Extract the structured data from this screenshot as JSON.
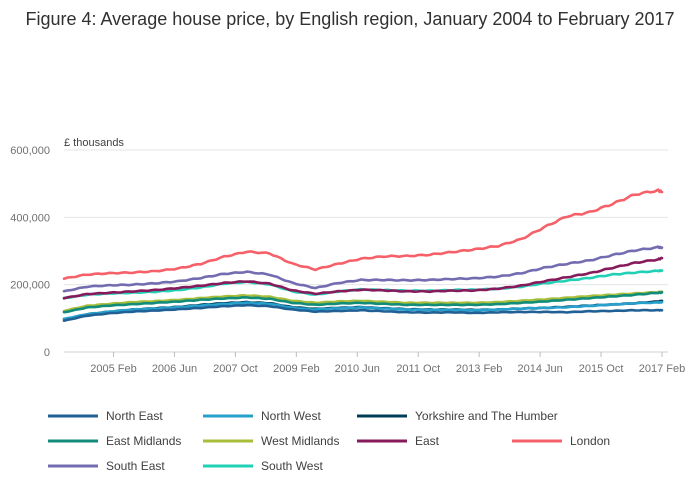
{
  "chart_data": {
    "type": "line",
    "title": "Figure 4: Average house price, by English region, January 2004 to February 2017",
    "ylabel": "£ thousands",
    "xlabel": "",
    "ylim": [
      0,
      600000
    ],
    "y_ticks": [
      0,
      200000,
      400000,
      600000
    ],
    "y_tick_labels": [
      "0",
      "200,000",
      "400,000",
      "600,000"
    ],
    "x_ticks": [
      "2005-02",
      "2006-06",
      "2007-10",
      "2009-02",
      "2010-06",
      "2011-10",
      "2013-02",
      "2014-06",
      "2015-10",
      "2017-02"
    ],
    "x_tick_labels": [
      "2005 Feb",
      "2006 Jun",
      "2007 Oct",
      "2009 Feb",
      "2010 Jun",
      "2011 Oct",
      "2013 Feb",
      "2014 Jun",
      "2015 Oct",
      "2017 Feb"
    ],
    "x_range": [
      "2004-01",
      "2017-02"
    ],
    "grid": true,
    "legend_position": "bottom",
    "dates": [
      "2004-01",
      "2004-07",
      "2005-01",
      "2005-07",
      "2006-01",
      "2006-07",
      "2007-01",
      "2007-07",
      "2008-01",
      "2008-07",
      "2009-01",
      "2009-07",
      "2010-01",
      "2010-07",
      "2011-01",
      "2011-07",
      "2012-01",
      "2012-07",
      "2013-01",
      "2013-07",
      "2014-01",
      "2014-07",
      "2015-01",
      "2015-07",
      "2016-01",
      "2016-07",
      "2017-01",
      "2017-02"
    ],
    "series": [
      {
        "name": "North East",
        "color": "#206095",
        "values": [
          93000,
          108000,
          115000,
          120000,
          123000,
          127000,
          131000,
          136000,
          139000,
          136000,
          126000,
          120000,
          122000,
          124000,
          121000,
          118000,
          117000,
          118000,
          116000,
          118000,
          119000,
          119000,
          118000,
          121000,
          122000,
          124000,
          124000,
          124000
        ]
      },
      {
        "name": "North West",
        "color": "#27a0cc",
        "values": [
          98000,
          112000,
          120000,
          126000,
          129000,
          133000,
          138000,
          143000,
          146000,
          143000,
          131000,
          126000,
          130000,
          132000,
          129000,
          126000,
          125000,
          125000,
          124000,
          126000,
          129000,
          131000,
          133000,
          137000,
          141000,
          145000,
          147000,
          148000
        ]
      },
      {
        "name": "Yorkshire and The Humber",
        "color": "#003c57",
        "values": [
          97000,
          112000,
          120000,
          126000,
          130000,
          134000,
          140000,
          145000,
          148000,
          145000,
          133000,
          128000,
          131000,
          133000,
          130000,
          127000,
          126000,
          126000,
          125000,
          126000,
          129000,
          131000,
          134000,
          138000,
          141000,
          145000,
          150000,
          152000
        ]
      },
      {
        "name": "East Midlands",
        "color": "#118c7b",
        "values": [
          118000,
          132000,
          138000,
          142000,
          146000,
          150000,
          155000,
          159000,
          162000,
          158000,
          146000,
          140000,
          144000,
          146000,
          143000,
          140000,
          140000,
          140000,
          140000,
          142000,
          146000,
          150000,
          155000,
          160000,
          165000,
          170000,
          176000,
          177000
        ]
      },
      {
        "name": "West Midlands",
        "color": "#a8bd3a",
        "values": [
          122000,
          137000,
          143000,
          148000,
          151000,
          155000,
          160000,
          165000,
          168000,
          164000,
          152000,
          146000,
          150000,
          152000,
          149000,
          146000,
          146000,
          146000,
          146000,
          148000,
          152000,
          156000,
          161000,
          166000,
          170000,
          174000,
          178000,
          179000
        ]
      },
      {
        "name": "East",
        "color": "#871a5b",
        "values": [
          160000,
          172000,
          176000,
          180000,
          184000,
          190000,
          197000,
          205000,
          210000,
          203000,
          183000,
          173000,
          180000,
          185000,
          183000,
          180000,
          180000,
          182000,
          183000,
          188000,
          197000,
          210000,
          222000,
          234000,
          250000,
          265000,
          275000,
          279000
        ]
      },
      {
        "name": "London",
        "color": "#f66068",
        "values": [
          218000,
          230000,
          234000,
          236000,
          240000,
          248000,
          262000,
          283000,
          298000,
          293000,
          262000,
          245000,
          262000,
          277000,
          284000,
          285000,
          289000,
          297000,
          305000,
          315000,
          335000,
          370000,
          403000,
          415000,
          440000,
          468000,
          480000,
          475000
        ]
      },
      {
        "name": "South East",
        "color": "#746cb1",
        "values": [
          180000,
          194000,
          198000,
          200000,
          204000,
          210000,
          220000,
          232000,
          238000,
          230000,
          205000,
          190000,
          205000,
          214000,
          214000,
          213000,
          214000,
          217000,
          219000,
          224000,
          234000,
          250000,
          262000,
          272000,
          288000,
          302000,
          311000,
          310000
        ]
      },
      {
        "name": "South West",
        "color": "#22d0b6",
        "values": [
          160000,
          170000,
          174000,
          176000,
          179000,
          184000,
          192000,
          203000,
          208000,
          201000,
          180000,
          170000,
          180000,
          186000,
          184000,
          182000,
          182000,
          184000,
          185000,
          188000,
          194000,
          204000,
          212000,
          220000,
          230000,
          236000,
          241000,
          242000
        ]
      }
    ]
  }
}
